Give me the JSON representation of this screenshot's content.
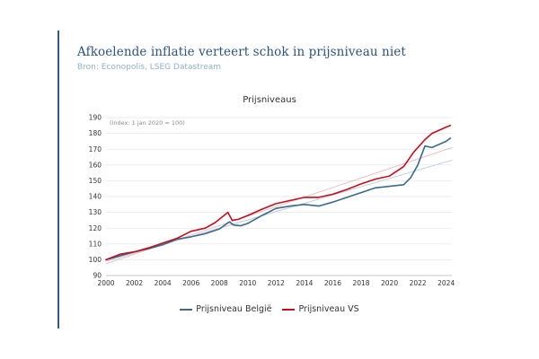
{
  "header": {
    "title": "Afkoelende inflatie verteert schok in prijsniveau niet",
    "source": "Bron: Econopolis, LSEG Datastream"
  },
  "colors": {
    "accent_rule": "#2f5b86",
    "belgium": "#3b6a8c",
    "us": "#c0111f",
    "belgium_trend": "#b8c8d6",
    "us_trend": "#efb9bf",
    "grid": "#e5e5e5"
  },
  "chart_data": {
    "type": "line",
    "title": "Prijsniveaus",
    "annotation": "(index: 1 jan 2020 = 100)",
    "xlabel": "",
    "ylabel": "",
    "xlim": [
      2000,
      2024.4
    ],
    "ylim": [
      90,
      190
    ],
    "x_ticks": [
      2000,
      2002,
      2004,
      2006,
      2008,
      2010,
      2012,
      2014,
      2016,
      2018,
      2020,
      2022,
      2024
    ],
    "y_ticks": [
      90,
      100,
      110,
      120,
      130,
      140,
      150,
      160,
      170,
      180,
      190
    ],
    "grid": true,
    "legend_position": "bottom",
    "series": [
      {
        "name": "Prijsniveau België",
        "color": "#3b6a8c",
        "x": [
          2000,
          2001,
          2002,
          2003,
          2004,
          2005,
          2006,
          2007,
          2008,
          2008.7,
          2009,
          2009.5,
          2010,
          2011,
          2012,
          2013,
          2014,
          2015,
          2016,
          2017,
          2018,
          2019,
          2020,
          2021,
          2021.5,
          2022,
          2022.5,
          2023,
          2023.5,
          2024,
          2024.3
        ],
        "values": [
          100,
          102.5,
          105,
          107,
          109.5,
          113,
          114.5,
          116.5,
          119.5,
          124,
          122,
          121.5,
          123,
          128,
          132.5,
          134,
          135,
          134,
          136.5,
          139.5,
          142.5,
          145.5,
          146.5,
          147.5,
          152,
          160,
          172,
          171,
          173,
          175,
          177
        ]
      },
      {
        "name": "Prijsniveau VS",
        "color": "#c0111f",
        "x": [
          2000,
          2001,
          2002,
          2003,
          2004,
          2005,
          2006,
          2007,
          2007.7,
          2008.6,
          2008.9,
          2009.3,
          2010,
          2011,
          2012,
          2013,
          2014,
          2015,
          2016,
          2017,
          2018,
          2019,
          2020,
          2021,
          2021.7,
          2022.5,
          2023,
          2023.5,
          2024,
          2024.3
        ],
        "values": [
          100,
          103.5,
          105,
          107.5,
          110.5,
          113.5,
          118,
          120,
          123.5,
          130,
          125,
          125.5,
          128,
          132,
          135.5,
          137.5,
          139.5,
          139.5,
          141.5,
          144.5,
          148,
          151,
          153,
          159,
          168,
          176,
          180,
          182,
          184,
          185
        ]
      },
      {
        "name": "",
        "color": "#b8c8d6",
        "x": [
          2000,
          2024.4
        ],
        "values": [
          99,
          163
        ]
      },
      {
        "name": "",
        "color": "#efb9bf",
        "x": [
          2000,
          2024.4
        ],
        "values": [
          97.5,
          171
        ]
      }
    ]
  }
}
